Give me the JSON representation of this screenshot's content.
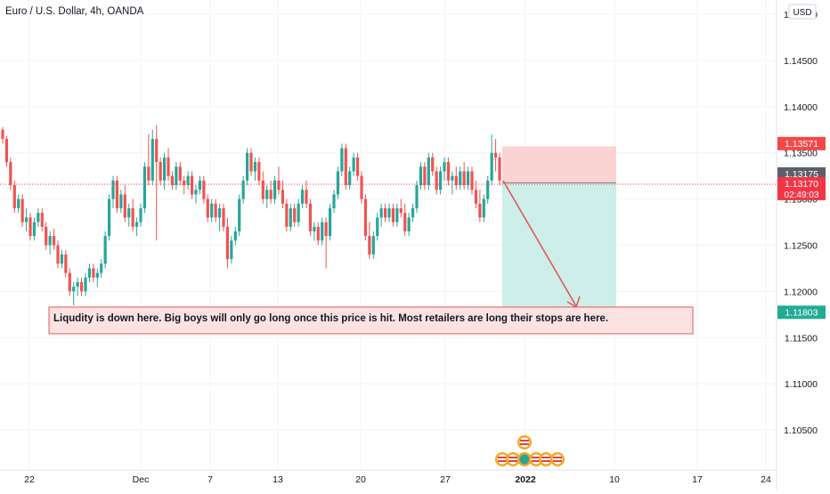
{
  "header": {
    "symbol_title": "Euro / U.S. Dollar, 4h, OANDA",
    "currency_button": "USD"
  },
  "colors": {
    "up": "#26a69a",
    "down": "#ef5350",
    "grid": "#f0f3fa",
    "axis_text": "#131722",
    "stop_zone": "#fbd3d3",
    "target_zone": "#cdeee9",
    "annotation_fill": "#fde2e2",
    "annotation_border": "#e05a5a",
    "stop_label": "#f44848",
    "entry_label": "#5d606b",
    "current_label": "#f23645",
    "target_label": "#22ab94"
  },
  "annotation": {
    "text": "Liqudity is down here. Big boys will only go long once this price is hit. Most retailers are long their stops are here."
  },
  "price_labels": {
    "stop_price": "1.13571",
    "entry_price": "1.13175",
    "current_price": "1.13170",
    "countdown": "02:49:03",
    "target_price": "1.11803"
  },
  "chart_data": {
    "type": "candlestick",
    "title": "Euro / U.S. Dollar, 4h, OANDA",
    "ylim": [
      1.1,
      1.15
    ],
    "y_ticks": [
      "1.15000",
      "1.14500",
      "1.14000",
      "1.13500",
      "1.13000",
      "1.12500",
      "1.12000",
      "1.11500",
      "1.11000",
      "1.10500"
    ],
    "x_ticks": [
      "22",
      "Dec",
      "7",
      "13",
      "20",
      "27",
      "2022",
      "10",
      "17",
      "24"
    ],
    "grid": true,
    "candles_ohlc": [
      [
        1.1375,
        1.1378,
        1.136,
        1.1365
      ],
      [
        1.1365,
        1.1368,
        1.1335,
        1.134
      ],
      [
        1.134,
        1.1345,
        1.131,
        1.1315
      ],
      [
        1.1315,
        1.132,
        1.1285,
        1.129
      ],
      [
        1.129,
        1.1305,
        1.1285,
        1.13
      ],
      [
        1.13,
        1.1305,
        1.127,
        1.1275
      ],
      [
        1.1275,
        1.129,
        1.1265,
        1.128
      ],
      [
        1.128,
        1.1285,
        1.1255,
        1.126
      ],
      [
        1.126,
        1.128,
        1.1255,
        1.1275
      ],
      [
        1.1275,
        1.129,
        1.127,
        1.1285
      ],
      [
        1.1285,
        1.129,
        1.1265,
        1.127
      ],
      [
        1.127,
        1.1275,
        1.1245,
        1.125
      ],
      [
        1.125,
        1.1265,
        1.124,
        1.126
      ],
      [
        1.126,
        1.1268,
        1.1245,
        1.125
      ],
      [
        1.125,
        1.1255,
        1.1225,
        1.123
      ],
      [
        1.123,
        1.1245,
        1.1225,
        1.124
      ],
      [
        1.124,
        1.1245,
        1.1215,
        1.122
      ],
      [
        1.122,
        1.1225,
        1.1195,
        1.12
      ],
      [
        1.12,
        1.121,
        1.1185,
        1.1205
      ],
      [
        1.1205,
        1.1215,
        1.1195,
        1.121
      ],
      [
        1.121,
        1.1215,
        1.1195,
        1.12
      ],
      [
        1.12,
        1.122,
        1.1195,
        1.1215
      ],
      [
        1.1215,
        1.123,
        1.121,
        1.1225
      ],
      [
        1.1225,
        1.123,
        1.121,
        1.1215
      ],
      [
        1.1215,
        1.1225,
        1.1205,
        1.122
      ],
      [
        1.122,
        1.1235,
        1.1215,
        1.123
      ],
      [
        1.123,
        1.1265,
        1.1225,
        1.126
      ],
      [
        1.126,
        1.1305,
        1.1255,
        1.13
      ],
      [
        1.13,
        1.1325,
        1.129,
        1.132
      ],
      [
        1.132,
        1.1325,
        1.1285,
        1.129
      ],
      [
        1.129,
        1.131,
        1.1285,
        1.1305
      ],
      [
        1.1305,
        1.1315,
        1.1275,
        1.128
      ],
      [
        1.128,
        1.1295,
        1.127,
        1.129
      ],
      [
        1.129,
        1.13,
        1.1265,
        1.127
      ],
      [
        1.127,
        1.128,
        1.126,
        1.1275
      ],
      [
        1.1275,
        1.1295,
        1.127,
        1.129
      ],
      [
        1.129,
        1.134,
        1.1285,
        1.1335
      ],
      [
        1.1335,
        1.137,
        1.1315,
        1.132
      ],
      [
        1.132,
        1.1375,
        1.1315,
        1.1365
      ],
      [
        1.1365,
        1.138,
        1.1255,
        1.134
      ],
      [
        1.134,
        1.1345,
        1.1315,
        1.132
      ],
      [
        1.132,
        1.135,
        1.131,
        1.1345
      ],
      [
        1.1345,
        1.1355,
        1.132,
        1.1325
      ],
      [
        1.1325,
        1.133,
        1.131,
        1.1315
      ],
      [
        1.1315,
        1.134,
        1.131,
        1.1335
      ],
      [
        1.1335,
        1.134,
        1.1315,
        1.132
      ],
      [
        1.132,
        1.1325,
        1.1305,
        1.1315
      ],
      [
        1.1315,
        1.133,
        1.131,
        1.1325
      ],
      [
        1.1325,
        1.133,
        1.13,
        1.1305
      ],
      [
        1.1305,
        1.1315,
        1.1295,
        1.131
      ],
      [
        1.131,
        1.1325,
        1.1305,
        1.132
      ],
      [
        1.132,
        1.1325,
        1.1295,
        1.13
      ],
      [
        1.13,
        1.1305,
        1.1275,
        1.128
      ],
      [
        1.128,
        1.13,
        1.1275,
        1.1295
      ],
      [
        1.1295,
        1.13,
        1.1275,
        1.128
      ],
      [
        1.128,
        1.1295,
        1.1265,
        1.129
      ],
      [
        1.129,
        1.1295,
        1.1265,
        1.127
      ],
      [
        1.127,
        1.128,
        1.1225,
        1.1235
      ],
      [
        1.1235,
        1.126,
        1.123,
        1.1255
      ],
      [
        1.1255,
        1.127,
        1.125,
        1.1265
      ],
      [
        1.1265,
        1.1305,
        1.126,
        1.13
      ],
      [
        1.13,
        1.1325,
        1.1295,
        1.132
      ],
      [
        1.132,
        1.1355,
        1.1315,
        1.135
      ],
      [
        1.135,
        1.1355,
        1.1325,
        1.133
      ],
      [
        1.133,
        1.1345,
        1.132,
        1.134
      ],
      [
        1.134,
        1.1345,
        1.1315,
        1.132
      ],
      [
        1.132,
        1.133,
        1.1295,
        1.13
      ],
      [
        1.13,
        1.1315,
        1.129,
        1.131
      ],
      [
        1.131,
        1.132,
        1.1295,
        1.13
      ],
      [
        1.13,
        1.1325,
        1.1295,
        1.132
      ],
      [
        1.132,
        1.1335,
        1.1305,
        1.131
      ],
      [
        1.131,
        1.132,
        1.129,
        1.1295
      ],
      [
        1.1295,
        1.13,
        1.1265,
        1.127
      ],
      [
        1.127,
        1.1295,
        1.1265,
        1.129
      ],
      [
        1.129,
        1.1295,
        1.127,
        1.1275
      ],
      [
        1.1275,
        1.13,
        1.127,
        1.1295
      ],
      [
        1.1295,
        1.1315,
        1.129,
        1.131
      ],
      [
        1.131,
        1.132,
        1.129,
        1.1295
      ],
      [
        1.1295,
        1.13,
        1.126,
        1.1265
      ],
      [
        1.1265,
        1.1275,
        1.1255,
        1.127
      ],
      [
        1.127,
        1.1275,
        1.125,
        1.1255
      ],
      [
        1.1255,
        1.128,
        1.125,
        1.1275
      ],
      [
        1.1275,
        1.128,
        1.1225,
        1.126
      ],
      [
        1.126,
        1.1295,
        1.1255,
        1.129
      ],
      [
        1.129,
        1.131,
        1.1285,
        1.1305
      ],
      [
        1.1305,
        1.1335,
        1.13,
        1.133
      ],
      [
        1.133,
        1.136,
        1.1325,
        1.1355
      ],
      [
        1.1355,
        1.136,
        1.131,
        1.1315
      ],
      [
        1.1315,
        1.1335,
        1.131,
        1.133
      ],
      [
        1.133,
        1.135,
        1.1325,
        1.1345
      ],
      [
        1.1345,
        1.135,
        1.132,
        1.1325
      ],
      [
        1.1325,
        1.133,
        1.1295,
        1.13
      ],
      [
        1.13,
        1.1305,
        1.1255,
        1.126
      ],
      [
        1.126,
        1.1275,
        1.1235,
        1.124
      ],
      [
        1.124,
        1.1265,
        1.1235,
        1.126
      ],
      [
        1.126,
        1.1285,
        1.1255,
        1.128
      ],
      [
        1.128,
        1.1295,
        1.127,
        1.129
      ],
      [
        1.129,
        1.1295,
        1.1275,
        1.128
      ],
      [
        1.128,
        1.1295,
        1.1275,
        1.129
      ],
      [
        1.129,
        1.1295,
        1.127,
        1.1275
      ],
      [
        1.1275,
        1.1295,
        1.127,
        1.129
      ],
      [
        1.129,
        1.13,
        1.128,
        1.1285
      ],
      [
        1.1285,
        1.1295,
        1.126,
        1.1265
      ],
      [
        1.1265,
        1.1285,
        1.126,
        1.128
      ],
      [
        1.128,
        1.1295,
        1.1275,
        1.129
      ],
      [
        1.129,
        1.132,
        1.1285,
        1.1315
      ],
      [
        1.1315,
        1.134,
        1.131,
        1.1335
      ],
      [
        1.1335,
        1.134,
        1.131,
        1.1315
      ],
      [
        1.1315,
        1.135,
        1.131,
        1.1345
      ],
      [
        1.1345,
        1.135,
        1.1325,
        1.133
      ],
      [
        1.133,
        1.1335,
        1.1305,
        1.131
      ],
      [
        1.131,
        1.1335,
        1.1305,
        1.133
      ],
      [
        1.133,
        1.1345,
        1.132,
        1.134
      ],
      [
        1.134,
        1.1345,
        1.1315,
        1.132
      ],
      [
        1.132,
        1.133,
        1.1305,
        1.1325
      ],
      [
        1.1325,
        1.1335,
        1.131,
        1.1315
      ],
      [
        1.1315,
        1.1335,
        1.131,
        1.133
      ],
      [
        1.133,
        1.134,
        1.131,
        1.1315
      ],
      [
        1.1315,
        1.1335,
        1.131,
        1.133
      ],
      [
        1.133,
        1.1335,
        1.1305,
        1.131
      ],
      [
        1.131,
        1.132,
        1.129,
        1.1295
      ],
      [
        1.1295,
        1.131,
        1.1275,
        1.128
      ],
      [
        1.128,
        1.1305,
        1.1275,
        1.13
      ],
      [
        1.13,
        1.1325,
        1.1295,
        1.132
      ],
      [
        1.132,
        1.137,
        1.1315,
        1.135
      ],
      [
        1.135,
        1.1365,
        1.133,
        1.1345
      ],
      [
        1.1345,
        1.135,
        1.1315,
        1.132
      ]
    ],
    "markers": {
      "stop_price": 1.13571,
      "entry_price": 1.13175,
      "current_price": 1.1317,
      "target_price": 1.11803
    }
  }
}
